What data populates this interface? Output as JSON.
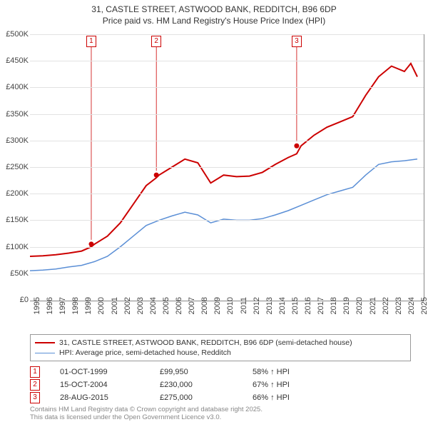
{
  "title_line1": "31, CASTLE STREET, ASTWOOD BANK, REDDITCH, B96 6DP",
  "title_line2": "Price paid vs. HM Land Registry's House Price Index (HPI)",
  "chart": {
    "type": "line",
    "background_color": "#ffffff",
    "grid_color": "#e2e2e2",
    "axis_color": "#888888",
    "x_years": [
      1995,
      1996,
      1997,
      1998,
      1999,
      2000,
      2001,
      2002,
      2003,
      2004,
      2005,
      2006,
      2007,
      2008,
      2009,
      2010,
      2011,
      2012,
      2013,
      2014,
      2015,
      2016,
      2017,
      2018,
      2019,
      2020,
      2021,
      2022,
      2023,
      2024,
      2025
    ],
    "xlim": [
      1995,
      2025.5
    ],
    "ylim": [
      0,
      500000
    ],
    "ytick_step": 50000,
    "ytick_labels": [
      "£0",
      "£50K",
      "£100K",
      "£150K",
      "£200K",
      "£250K",
      "£300K",
      "£350K",
      "£400K",
      "£450K",
      "£500K"
    ],
    "tick_fontsize": 11,
    "series": [
      {
        "name": "property",
        "label": "31, CASTLE STREET, ASTWOOD BANK, REDDITCH, B96 6DP (semi-detached house)",
        "color": "#cc0000",
        "line_width": 2,
        "x": [
          1995,
          1996,
          1997,
          1998,
          1999,
          1999.75,
          2000,
          2001,
          2002,
          2003,
          2004,
          2004.79,
          2005,
          2006,
          2007,
          2008,
          2009,
          2010,
          2011,
          2012,
          2013,
          2014,
          2015,
          2015.66,
          2016,
          2017,
          2018,
          2019,
          2020,
          2021,
          2022,
          2023,
          2024,
          2024.5,
          2025
        ],
        "y": [
          82000,
          83000,
          85000,
          88000,
          92000,
          99950,
          105000,
          120000,
          145000,
          180000,
          215000,
          230000,
          235000,
          250000,
          265000,
          258000,
          220000,
          235000,
          232000,
          233000,
          240000,
          255000,
          268000,
          275000,
          290000,
          310000,
          325000,
          335000,
          345000,
          385000,
          420000,
          440000,
          430000,
          445000,
          420000
        ]
      },
      {
        "name": "hpi",
        "label": "HPI: Average price, semi-detached house, Redditch",
        "color": "#5b8fd6",
        "line_width": 1.5,
        "x": [
          1995,
          1996,
          1997,
          1998,
          1999,
          2000,
          2001,
          2002,
          2003,
          2004,
          2005,
          2006,
          2007,
          2008,
          2009,
          2010,
          2011,
          2012,
          2013,
          2014,
          2015,
          2016,
          2017,
          2018,
          2019,
          2020,
          2021,
          2022,
          2023,
          2024,
          2025
        ],
        "y": [
          55000,
          56000,
          58000,
          62000,
          65000,
          72000,
          82000,
          100000,
          120000,
          140000,
          150000,
          158000,
          165000,
          160000,
          145000,
          152000,
          150000,
          150000,
          153000,
          160000,
          168000,
          178000,
          188000,
          198000,
          205000,
          212000,
          235000,
          255000,
          260000,
          262000,
          265000
        ]
      }
    ],
    "sale_markers": [
      {
        "n": "1",
        "year": 1999.75,
        "y_above": 125000
      },
      {
        "n": "2",
        "year": 2004.79,
        "y_above": 252000
      },
      {
        "n": "3",
        "year": 2015.66,
        "y_above": 300000
      }
    ]
  },
  "legend": {
    "rows": [
      {
        "color": "#cc0000",
        "width": 2,
        "text": "31, CASTLE STREET, ASTWOOD BANK, REDDITCH, B96 6DP (semi-detached house)"
      },
      {
        "color": "#5b8fd6",
        "width": 1.5,
        "text": "HPI: Average price, semi-detached house, Redditch"
      }
    ]
  },
  "sales": [
    {
      "n": "1",
      "date": "01-OCT-1999",
      "price": "£99,950",
      "pct": "58% ↑ HPI"
    },
    {
      "n": "2",
      "date": "15-OCT-2004",
      "price": "£230,000",
      "pct": "67% ↑ HPI"
    },
    {
      "n": "3",
      "date": "28-AUG-2015",
      "price": "£275,000",
      "pct": "66% ↑ HPI"
    }
  ],
  "footer_line1": "Contains HM Land Registry data © Crown copyright and database right 2025.",
  "footer_line2": "This data is licensed under the Open Government Licence v3.0."
}
